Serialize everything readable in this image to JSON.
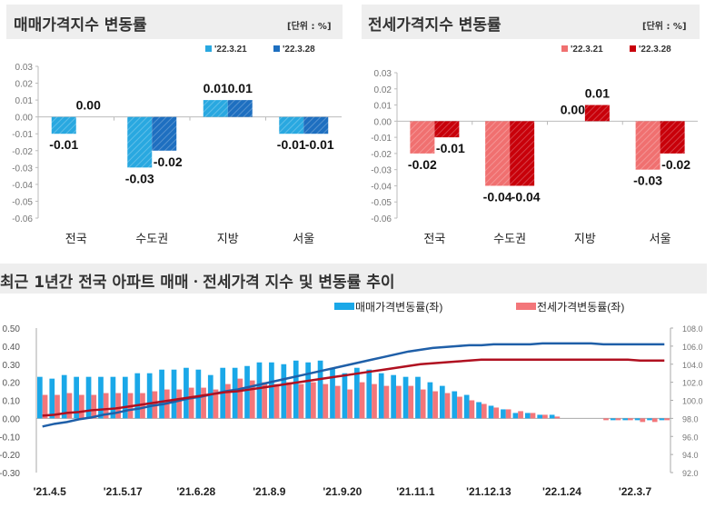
{
  "chart_data": [
    {
      "type": "bar",
      "title": "매매가격지수 변동률",
      "unit_label": "[단위 : %]",
      "categories": [
        "전국",
        "수도권",
        "지방",
        "서울"
      ],
      "series": [
        {
          "name": "'22.3.21",
          "values": [
            -0.01,
            -0.03,
            0.01,
            -0.01
          ],
          "color": "#29a8e0"
        },
        {
          "name": "'22.3.28",
          "values": [
            0.0,
            -0.02,
            0.01,
            -0.01
          ],
          "color": "#1e6fc0"
        }
      ],
      "yticks": [
        "0.03",
        "0.02",
        "0.01",
        "0.00",
        "-0.01",
        "-0.02",
        "-0.03",
        "-0.04",
        "-0.05",
        "-0.06"
      ],
      "ylim": [
        -0.06,
        0.03
      ]
    },
    {
      "type": "bar",
      "title": "전세가격지수 변동률",
      "unit_label": "[단위 : %]",
      "categories": [
        "전국",
        "수도권",
        "지방",
        "서울"
      ],
      "series": [
        {
          "name": "'22.3.21",
          "values": [
            -0.02,
            -0.04,
            0.0,
            -0.03
          ],
          "color": "#f07070"
        },
        {
          "name": "'22.3.28",
          "values": [
            -0.01,
            -0.04,
            0.01,
            -0.02
          ],
          "color": "#c8000a"
        }
      ],
      "yticks": [
        "0.03",
        "0.02",
        "0.01",
        "0.00",
        "-0.01",
        "-0.02",
        "-0.03",
        "-0.04",
        "-0.05",
        "-0.06"
      ],
      "ylim": [
        -0.06,
        0.03
      ]
    },
    {
      "type": "bar+line",
      "title": "최근 1년간 전국 아파트 매매ㆍ전세가격 지수 및 변동률 추이",
      "xticks": [
        "'21.4.5",
        "'21.5.17",
        "'21.6.28",
        "'21.8.9",
        "'21.9.20",
        "'21.11.1",
        "'21.12.13",
        "'22.1.24",
        "'22.3.7"
      ],
      "yticks_left": [
        "0.50",
        "0.40",
        "0.30",
        "0.20",
        "0.10",
        "0.00",
        "-0.10",
        "-0.20",
        "-0.30"
      ],
      "yticks_right": [
        "108.0",
        "106.0",
        "104.0",
        "102.0",
        "100.0",
        "98.0",
        "96.0",
        "94.0",
        "92.0"
      ],
      "ylim_left": [
        -0.3,
        0.5
      ],
      "ylim_right": [
        92,
        108
      ],
      "series": [
        {
          "name": "매매가격변동률(좌)",
          "color": "#1aa8e8",
          "values": [
            0.23,
            0.22,
            0.24,
            0.23,
            0.23,
            0.23,
            0.23,
            0.23,
            0.25,
            0.25,
            0.27,
            0.27,
            0.28,
            0.27,
            0.24,
            0.28,
            0.28,
            0.29,
            0.31,
            0.31,
            0.3,
            0.32,
            0.31,
            0.32,
            0.28,
            0.25,
            0.28,
            0.27,
            0.25,
            0.24,
            0.23,
            0.23,
            0.2,
            0.18,
            0.15,
            0.13,
            0.09,
            0.07,
            0.05,
            0.03,
            0.03,
            0.02,
            0.02,
            0.0,
            0.0,
            0.0,
            0.0,
            -0.01,
            -0.01,
            -0.01,
            -0.01,
            -0.01
          ]
        },
        {
          "name": "전세가격변동률(좌)",
          "color": "#f3767a",
          "values": [
            0.13,
            0.13,
            0.14,
            0.13,
            0.13,
            0.14,
            0.14,
            0.14,
            0.14,
            0.15,
            0.16,
            0.16,
            0.17,
            0.17,
            0.16,
            0.19,
            0.22,
            0.21,
            0.2,
            0.19,
            0.2,
            0.19,
            0.2,
            0.19,
            0.18,
            0.16,
            0.2,
            0.19,
            0.18,
            0.18,
            0.18,
            0.16,
            0.15,
            0.14,
            0.12,
            0.1,
            0.08,
            0.06,
            0.05,
            0.04,
            0.03,
            0.02,
            0.01,
            0.0,
            0.0,
            0.0,
            -0.01,
            -0.01,
            -0.01,
            -0.02,
            -0.02,
            -0.01
          ]
        },
        {
          "name": "매매가격지수",
          "axis": "right",
          "color": "#1f5fa8",
          "values": [
            97.1,
            97.4,
            97.6,
            97.9,
            98.1,
            98.4,
            98.6,
            98.9,
            99.1,
            99.4,
            99.6,
            99.9,
            100.2,
            100.4,
            100.7,
            101.0,
            101.2,
            101.5,
            101.8,
            102.1,
            102.4,
            102.7,
            103.0,
            103.3,
            103.6,
            103.9,
            104.2,
            104.5,
            104.8,
            105.1,
            105.4,
            105.6,
            105.8,
            105.9,
            106.0,
            106.1,
            106.1,
            106.2,
            106.2,
            106.2,
            106.2,
            106.3,
            106.3,
            106.3,
            106.3,
            106.3,
            106.2,
            106.2,
            106.2,
            106.2,
            106.2,
            106.2
          ]
        },
        {
          "name": "전세가격지수",
          "axis": "right",
          "color": "#b01020",
          "values": [
            98.3,
            98.4,
            98.6,
            98.7,
            98.9,
            99.0,
            99.1,
            99.3,
            99.5,
            99.7,
            99.9,
            100.1,
            100.3,
            100.5,
            100.7,
            100.9,
            101.0,
            101.2,
            101.4,
            101.6,
            101.8,
            102.0,
            102.2,
            102.4,
            102.6,
            102.8,
            103.0,
            103.2,
            103.4,
            103.6,
            103.8,
            104.0,
            104.1,
            104.2,
            104.3,
            104.4,
            104.5,
            104.5,
            104.5,
            104.5,
            104.5,
            104.5,
            104.5,
            104.5,
            104.5,
            104.5,
            104.5,
            104.5,
            104.5,
            104.4,
            104.4,
            104.4
          ]
        }
      ]
    }
  ]
}
